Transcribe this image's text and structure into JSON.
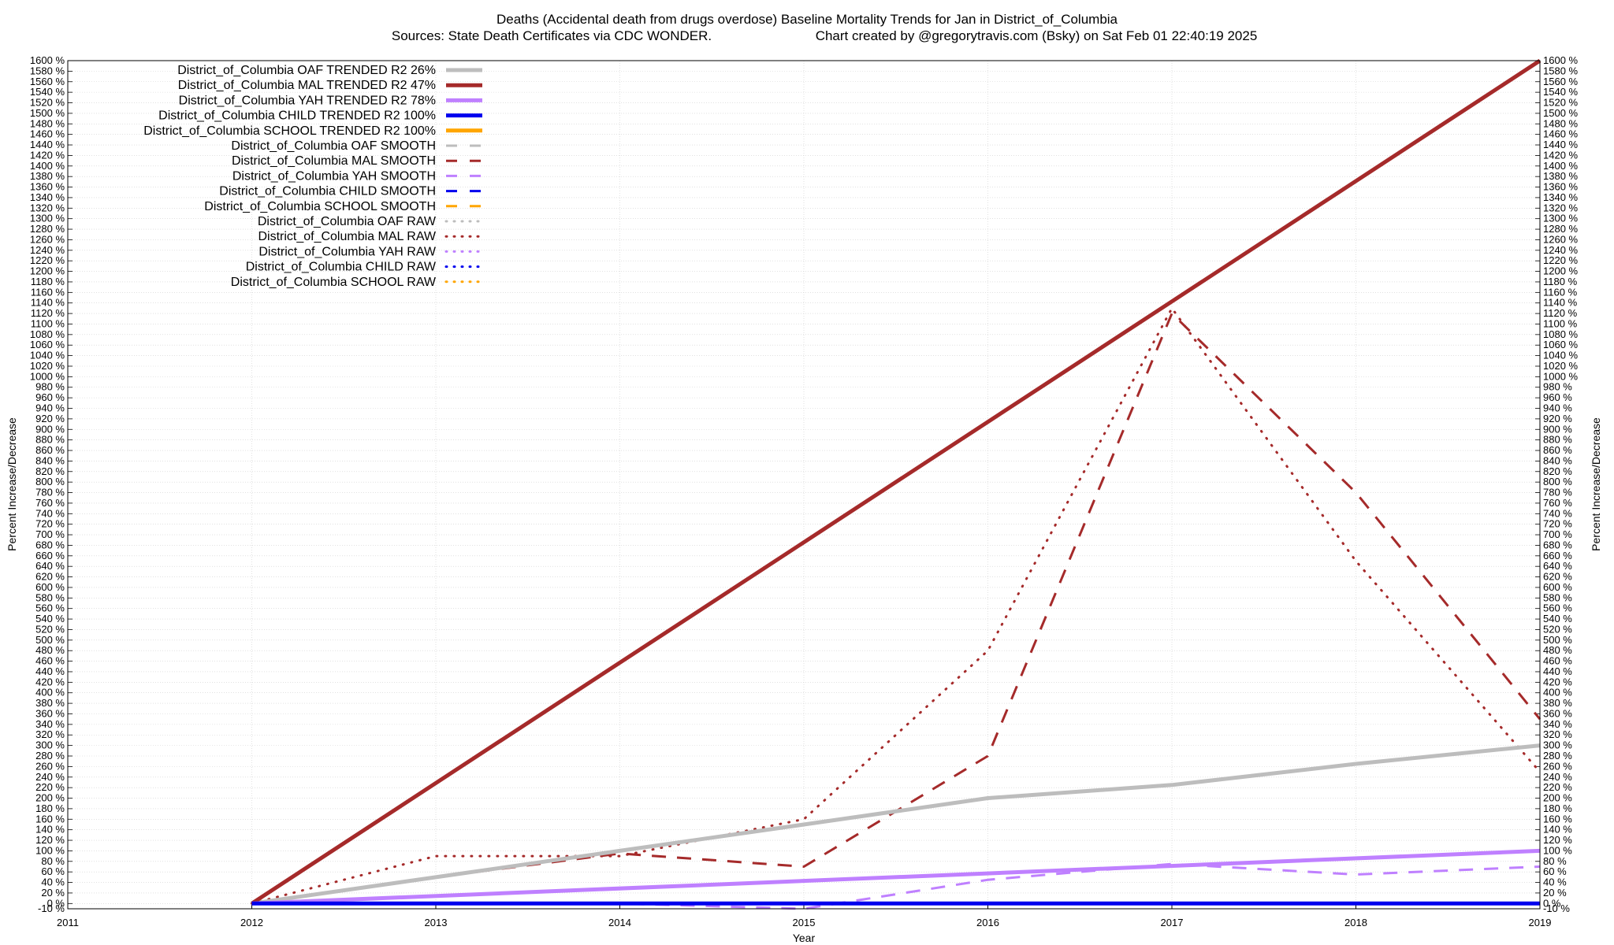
{
  "chart_data": {
    "type": "line",
    "title_line1": "Deaths (Accidental death from drugs overdose)  Baseline Mortality Trends for Jan in District_of_Columbia",
    "title_line2_left": "Sources: State Death Certificates via CDC WONDER.",
    "title_line2_right": "Chart created by @gregorytravis.com (Bsky) on Sat Feb 01 22:40:19 2025",
    "xlabel": "Year",
    "ylabel_left": "Percent Increase/Decrease",
    "ylabel_right": "Percent Increase/Decrease",
    "xlim": [
      2011,
      2019
    ],
    "ylim": [
      -10,
      1600
    ],
    "xticks": [
      2011,
      2012,
      2013,
      2014,
      2015,
      2016,
      2017,
      2018,
      2019
    ],
    "ytick_step": 20,
    "ytick_suffix": " %",
    "grid": true,
    "legend_position": "top-left",
    "series": [
      {
        "name": "District_of_Columbia OAF TRENDED R2  26%",
        "style": "trend",
        "color": "#bdbdbd",
        "x": [
          2012,
          2013,
          2014,
          2015,
          2016,
          2017,
          2018,
          2019
        ],
        "y": [
          0,
          50,
          100,
          150,
          200,
          225,
          265,
          300
        ]
      },
      {
        "name": "District_of_Columbia MAL TRENDED R2  47%",
        "style": "trend",
        "color": "#a52a2a",
        "x": [
          2012,
          2019
        ],
        "y": [
          0,
          1600
        ]
      },
      {
        "name": "District_of_Columbia YAH TRENDED R2  78%",
        "style": "trend",
        "color": "#bf80ff",
        "x": [
          2012,
          2019
        ],
        "y": [
          0,
          100
        ]
      },
      {
        "name": "District_of_Columbia CHILD TRENDED R2 100%",
        "style": "trend",
        "color": "#0000ee",
        "x": [
          2012,
          2019
        ],
        "y": [
          0,
          0
        ]
      },
      {
        "name": "District_of_Columbia SCHOOL TRENDED R2 100%",
        "style": "trend",
        "color": "#ffa500",
        "x": [],
        "y": []
      },
      {
        "name": "District_of_Columbia OAF SMOOTH",
        "style": "smooth",
        "color": "#bdbdbd",
        "x": [],
        "y": []
      },
      {
        "name": "District_of_Columbia MAL SMOOTH",
        "style": "smooth",
        "color": "#a52a2a",
        "x": [
          2012,
          2013,
          2014,
          2015,
          2016,
          2017,
          2018,
          2019
        ],
        "y": [
          0,
          50,
          95,
          70,
          280,
          1120,
          780,
          350
        ]
      },
      {
        "name": "District_of_Columbia YAH SMOOTH",
        "style": "smooth",
        "color": "#bf80ff",
        "x": [
          2012,
          2013,
          2014,
          2015,
          2016,
          2017,
          2018,
          2019
        ],
        "y": [
          0,
          0,
          0,
          -10,
          45,
          75,
          55,
          70
        ]
      },
      {
        "name": "District_of_Columbia CHILD SMOOTH",
        "style": "smooth",
        "color": "#0000ee",
        "x": [],
        "y": []
      },
      {
        "name": "District_of_Columbia SCHOOL SMOOTH",
        "style": "smooth",
        "color": "#ffa500",
        "x": [],
        "y": []
      },
      {
        "name": "District_of_Columbia OAF RAW",
        "style": "raw",
        "color": "#bdbdbd",
        "x": [],
        "y": []
      },
      {
        "name": "District_of_Columbia MAL RAW",
        "style": "raw",
        "color": "#a52a2a",
        "x": [
          2012,
          2013,
          2014,
          2015,
          2016,
          2017,
          2018,
          2019
        ],
        "y": [
          0,
          90,
          90,
          160,
          480,
          1130,
          650,
          250
        ]
      },
      {
        "name": "District_of_Columbia YAH RAW",
        "style": "raw",
        "color": "#bf80ff",
        "x": [],
        "y": []
      },
      {
        "name": "District_of_Columbia CHILD RAW",
        "style": "raw",
        "color": "#0000ee",
        "x": [],
        "y": []
      },
      {
        "name": "District_of_Columbia SCHOOL RAW",
        "style": "raw",
        "color": "#ffa500",
        "x": [],
        "y": []
      }
    ]
  }
}
